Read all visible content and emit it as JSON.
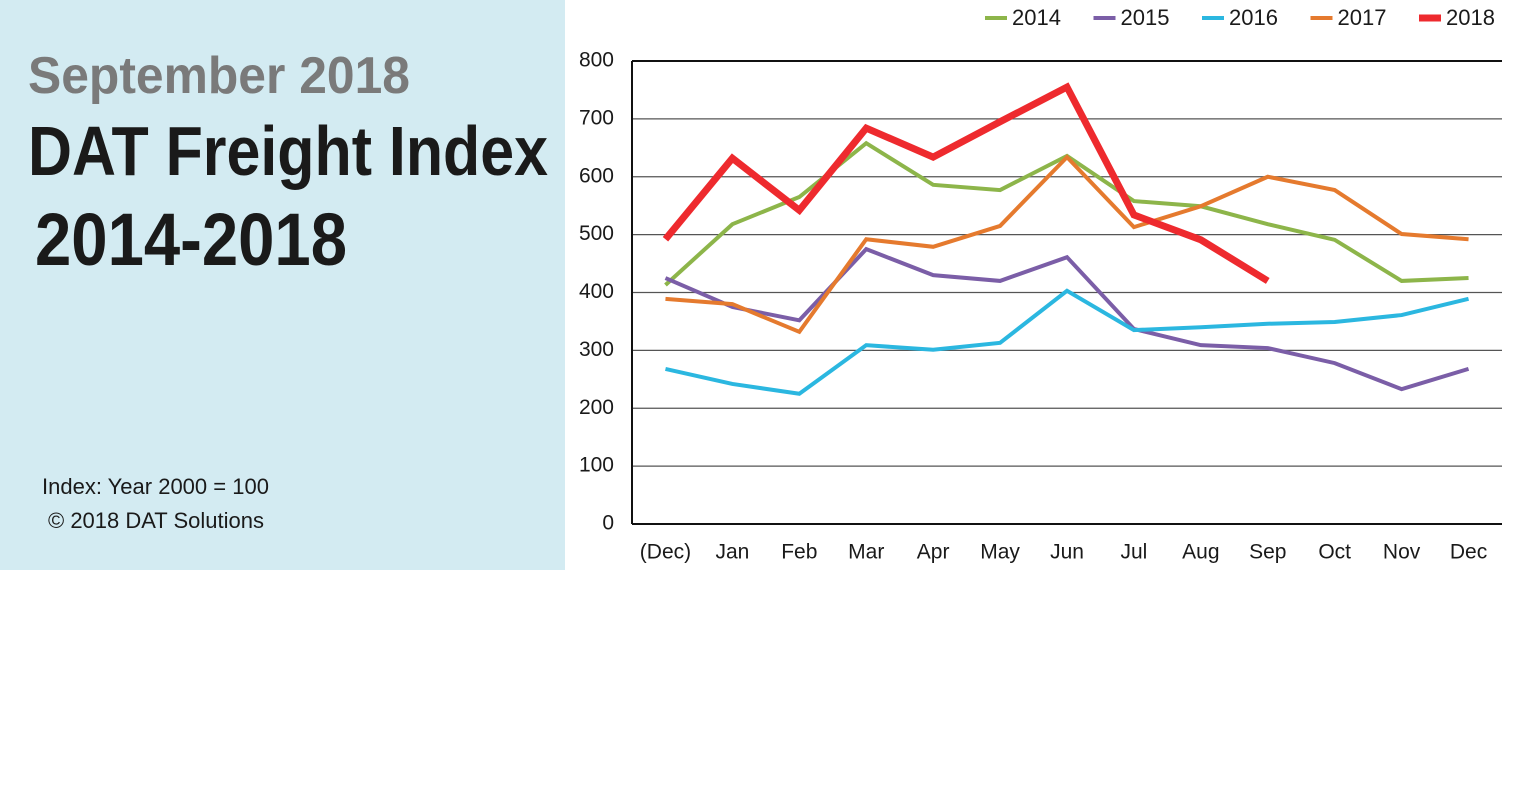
{
  "chart_data": {
    "type": "line",
    "supertitle": "September 2018",
    "title": "DAT Freight Index",
    "subtitle": "2014-2018",
    "notes": [
      "Index: Year 2000 = 100",
      "© 2018 DAT Solutions"
    ],
    "categories": [
      "(Dec)",
      "Jan",
      "Feb",
      "Mar",
      "Apr",
      "May",
      "Jun",
      "Jul",
      "Aug",
      "Sep",
      "Oct",
      "Nov",
      "Dec"
    ],
    "series": [
      {
        "name": "2014",
        "color": "#8db54a",
        "width": 4,
        "values": [
          413,
          518,
          565,
          658,
          586,
          577,
          636,
          558,
          549,
          518,
          491,
          420,
          425
        ]
      },
      {
        "name": "2015",
        "color": "#7b5ea7",
        "width": 4,
        "values": [
          425,
          375,
          352,
          475,
          430,
          420,
          461,
          337,
          309,
          304,
          278,
          233,
          268
        ]
      },
      {
        "name": "2016",
        "color": "#2bb7e0",
        "width": 4,
        "values": [
          268,
          242,
          225,
          309,
          301,
          313,
          403,
          335,
          340,
          346,
          349,
          361,
          389
        ]
      },
      {
        "name": "2017",
        "color": "#e57a2e",
        "width": 4,
        "values": [
          389,
          380,
          332,
          492,
          479,
          515,
          634,
          513,
          549,
          600,
          577,
          501,
          492
        ]
      },
      {
        "name": "2018",
        "color": "#ee2a2e",
        "width": 7,
        "values": [
          492,
          632,
          542,
          684,
          634,
          695,
          755,
          534,
          491,
          420,
          null,
          null,
          null
        ]
      }
    ],
    "ylim": [
      0,
      800
    ],
    "yticks": [
      0,
      100,
      200,
      300,
      400,
      500,
      600,
      700,
      800
    ],
    "grid": true,
    "legend": "top"
  }
}
